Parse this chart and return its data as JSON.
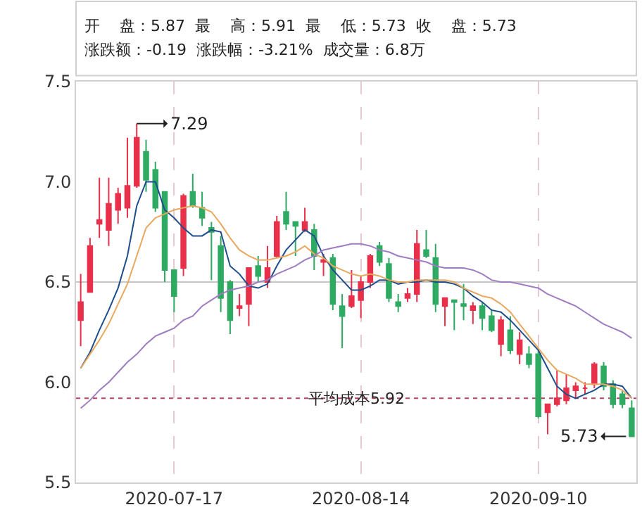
{
  "chart_data": {
    "type": "candlestick",
    "categories": [
      null,
      null,
      null,
      null,
      null,
      null,
      null,
      null,
      null,
      null,
      "2020-07-17",
      null,
      null,
      null,
      null,
      null,
      null,
      null,
      null,
      null,
      null,
      null,
      null,
      null,
      null,
      null,
      null,
      null,
      null,
      null,
      "2020-08-14",
      null,
      null,
      null,
      null,
      null,
      null,
      null,
      null,
      null,
      null,
      null,
      null,
      null,
      null,
      null,
      null,
      null,
      null,
      "2020-09-10",
      null,
      null,
      null,
      null,
      null,
      null,
      null,
      null,
      null,
      null
    ],
    "series": [
      {
        "colors": [
          "#e8304a",
          "#e8304a",
          "#e8304a",
          "#e8304a",
          "#e8304a",
          "#e8304a",
          "#e8304a",
          "#2eaa62",
          "#2eaa62",
          "#2eaa62",
          "#2eaa62",
          "#e8304a",
          "#2eaa62",
          "#2eaa62",
          "#2eaa62",
          "#2eaa62",
          "#2eaa62",
          "#e8304a",
          "#e8304a",
          "#2eaa62",
          "#e8304a",
          "#e8304a",
          "#2eaa62",
          "#2eaa62",
          "#e8304a",
          "#2eaa62",
          "#e8304a",
          "#2eaa62",
          "#2eaa62",
          "#e8304a",
          "#e8304a",
          "#e8304a",
          "#2eaa62",
          "#2eaa62",
          "#2eaa62",
          "#e8304a",
          "#e8304a",
          "#2eaa62",
          "#2eaa62",
          "#e8304a",
          "#2eaa62",
          "#2eaa62",
          "#e8304a",
          "#2eaa62",
          "#2eaa62",
          "#e8304a",
          "#2eaa62",
          "#e8304a",
          "#2eaa62",
          "#2eaa62",
          "#e8304a",
          "#e8304a",
          "#e8304a",
          "#e8304a",
          "#e8304a",
          "#e8304a",
          "#2eaa62",
          "#2eaa62",
          "#2eaa62",
          "#2eaa62"
        ],
        "ohlc": [
          [
            6.31,
            6.54,
            6.18,
            6.4
          ],
          [
            6.45,
            6.72,
            6.45,
            6.68
          ],
          [
            6.79,
            7.02,
            6.72,
            6.81
          ],
          [
            6.76,
            7.02,
            6.68,
            6.89
          ],
          [
            6.86,
            6.97,
            6.79,
            6.94
          ],
          [
            6.87,
            7.22,
            6.82,
            6.98
          ],
          [
            6.98,
            7.29,
            6.97,
            7.22
          ],
          [
            7.15,
            7.21,
            6.95,
            7.01
          ],
          [
            7.06,
            7.1,
            6.85,
            6.87
          ],
          [
            6.95,
            6.95,
            6.5,
            6.56
          ],
          [
            6.56,
            6.56,
            6.35,
            6.43
          ],
          [
            6.57,
            6.94,
            6.53,
            6.93
          ],
          [
            6.95,
            7.04,
            6.87,
            6.88
          ],
          [
            6.87,
            6.95,
            6.78,
            6.82
          ],
          [
            6.77,
            6.8,
            6.51,
            6.75
          ],
          [
            6.68,
            6.73,
            6.35,
            6.42
          ],
          [
            6.5,
            6.51,
            6.24,
            6.31
          ],
          [
            6.37,
            6.44,
            6.33,
            6.38
          ],
          [
            6.39,
            6.57,
            6.28,
            6.57
          ],
          [
            6.58,
            6.63,
            6.5,
            6.53
          ],
          [
            6.5,
            6.68,
            6.47,
            6.57
          ],
          [
            6.63,
            6.83,
            6.62,
            6.8
          ],
          [
            6.85,
            6.95,
            6.76,
            6.79
          ],
          [
            6.8,
            6.8,
            6.63,
            6.78
          ],
          [
            6.76,
            6.87,
            6.75,
            6.8
          ],
          [
            6.76,
            6.79,
            6.56,
            6.63
          ],
          [
            6.6,
            6.64,
            6.53,
            6.61
          ],
          [
            6.62,
            6.64,
            6.36,
            6.39
          ],
          [
            6.38,
            6.44,
            6.17,
            6.33
          ],
          [
            6.38,
            6.56,
            6.37,
            6.43
          ],
          [
            6.41,
            6.53,
            6.32,
            6.5
          ],
          [
            6.5,
            6.64,
            6.47,
            6.63
          ],
          [
            6.68,
            6.7,
            6.58,
            6.6
          ],
          [
            6.59,
            6.62,
            6.4,
            6.42
          ],
          [
            6.4,
            6.44,
            6.35,
            6.38
          ],
          [
            6.42,
            6.47,
            6.4,
            6.44
          ],
          [
            6.44,
            6.76,
            6.4,
            6.69
          ],
          [
            6.66,
            6.76,
            6.62,
            6.63
          ],
          [
            6.62,
            6.69,
            6.35,
            6.39
          ],
          [
            6.38,
            6.42,
            6.28,
            6.42
          ],
          [
            6.41,
            6.41,
            6.26,
            6.4
          ],
          [
            6.39,
            6.49,
            6.31,
            6.38
          ],
          [
            6.36,
            6.4,
            6.29,
            6.38
          ],
          [
            6.38,
            6.4,
            6.26,
            6.32
          ],
          [
            6.33,
            6.36,
            6.25,
            6.26
          ],
          [
            6.19,
            6.33,
            6.13,
            6.31
          ],
          [
            6.26,
            6.33,
            6.14,
            6.16
          ],
          [
            6.14,
            6.25,
            6.09,
            6.21
          ],
          [
            6.14,
            6.18,
            6.07,
            6.09
          ],
          [
            6.14,
            6.17,
            5.82,
            5.83
          ],
          [
            5.85,
            5.89,
            5.74,
            5.89
          ],
          [
            5.89,
            6.06,
            5.88,
            5.92
          ],
          [
            5.91,
            6.04,
            5.89,
            5.97
          ],
          [
            5.96,
            6.0,
            5.92,
            5.98
          ],
          [
            5.97,
            6.0,
            5.94,
            5.97
          ],
          [
            5.99,
            6.1,
            5.97,
            6.09
          ],
          [
            6.08,
            6.1,
            5.96,
            5.98
          ],
          [
            5.99,
            6.01,
            5.87,
            5.89
          ],
          [
            5.94,
            5.96,
            5.87,
            5.89
          ],
          [
            5.87,
            5.91,
            5.73,
            5.73
          ]
        ]
      },
      {
        "type": "line",
        "color": "#1f4e8c",
        "values": [
          6.07,
          6.15,
          6.26,
          6.36,
          6.47,
          6.63,
          6.88,
          7.0,
          7.0,
          6.86,
          6.82,
          6.77,
          6.73,
          6.73,
          6.76,
          6.75,
          6.58,
          6.54,
          6.48,
          6.47,
          6.49,
          6.58,
          6.66,
          6.71,
          6.76,
          6.73,
          6.63,
          6.56,
          6.51,
          6.46,
          6.46,
          6.48,
          6.51,
          6.51,
          6.49,
          6.5,
          6.5,
          6.51,
          6.5,
          6.5,
          6.49,
          6.47,
          6.43,
          6.4,
          6.36,
          6.35,
          6.31,
          6.26,
          6.21,
          6.16,
          6.07,
          5.98,
          5.94,
          5.92,
          5.94,
          5.96,
          5.99,
          5.99,
          5.98,
          5.92
        ]
      },
      {
        "type": "line",
        "color": "#e8a860",
        "values": [
          6.07,
          6.14,
          6.21,
          6.29,
          6.39,
          6.49,
          6.63,
          6.77,
          6.82,
          6.84,
          6.86,
          6.87,
          6.88,
          6.87,
          6.85,
          6.79,
          6.72,
          6.66,
          6.63,
          6.61,
          6.61,
          6.62,
          6.63,
          6.65,
          6.68,
          6.64,
          6.62,
          6.58,
          6.56,
          6.54,
          6.53,
          6.54,
          6.53,
          6.51,
          6.5,
          6.5,
          6.51,
          6.51,
          6.51,
          6.51,
          6.5,
          6.47,
          6.45,
          6.43,
          6.42,
          6.39,
          6.35,
          6.29,
          6.23,
          6.17,
          6.11,
          6.06,
          6.04,
          6.02,
          5.99,
          5.99,
          5.99,
          5.98,
          5.96,
          5.92
        ]
      },
      {
        "type": "line",
        "color": "#a07cc0",
        "values": [
          5.87,
          5.91,
          5.96,
          6.0,
          6.05,
          6.1,
          6.14,
          6.19,
          6.23,
          6.25,
          6.27,
          6.31,
          6.33,
          6.38,
          6.41,
          6.44,
          6.46,
          6.47,
          6.48,
          6.5,
          6.51,
          6.54,
          6.56,
          6.58,
          6.61,
          6.63,
          6.66,
          6.67,
          6.68,
          6.69,
          6.69,
          6.68,
          6.66,
          6.65,
          6.63,
          6.62,
          6.61,
          6.6,
          6.58,
          6.57,
          6.57,
          6.57,
          6.56,
          6.54,
          6.51,
          6.5,
          6.5,
          6.49,
          6.48,
          6.47,
          6.44,
          6.42,
          6.4,
          6.38,
          6.35,
          6.32,
          6.29,
          6.27,
          6.25,
          6.22
        ]
      }
    ],
    "ylim": [
      5.5,
      7.5
    ],
    "yticks": [
      5.5,
      {
        "value": 6,
        "label": "6.0"
      },
      6.5,
      {
        "value": 7,
        "label": "7.0"
      },
      7.5
    ],
    "grid": "x",
    "ref_lines": [
      {
        "axis": "y",
        "value": 6.5,
        "color": "#c8c8c8",
        "line_style": "solid"
      },
      {
        "axis": "y",
        "value": 5.92,
        "label": "平均成本5.92",
        "color": "#c04060",
        "line_style": "dotted"
      }
    ],
    "annotations": [
      "开    盘：5.87  最    高：5.91  最    低：5.73  收    盘：5.73",
      "涨跌额：-0.19  涨跌幅：-3.21%  成交量：6.8万",
      "7.29",
      "5.73"
    ]
  }
}
